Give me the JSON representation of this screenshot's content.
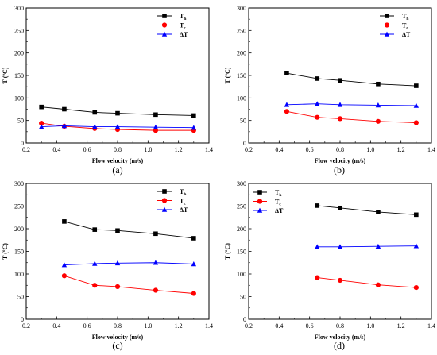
{
  "chart_data": [
    {
      "type": "line",
      "panel_label": "(a)",
      "xlabel": "Flow velocity (m/s)",
      "ylabel": "T (ºC)",
      "xlim": [
        0.2,
        1.4
      ],
      "ylim": [
        0,
        300
      ],
      "xticks": [
        "0.2",
        "0.4",
        "0.6",
        "0.8",
        "1.0",
        "1.2",
        "1.4"
      ],
      "yticks": [
        "0",
        "50",
        "100",
        "150",
        "200",
        "250",
        "300"
      ],
      "legend_position": "top-right",
      "series": [
        {
          "name": "T",
          "sub": "h",
          "color": "#000000",
          "marker": "square",
          "x": [
            0.3,
            0.45,
            0.65,
            0.8,
            1.05,
            1.3
          ],
          "y": [
            80,
            75,
            68,
            66,
            63,
            61
          ]
        },
        {
          "name": "T",
          "sub": "c",
          "color": "#ff0000",
          "marker": "circle",
          "x": [
            0.3,
            0.45,
            0.65,
            0.8,
            1.05,
            1.3
          ],
          "y": [
            44,
            37,
            32,
            30,
            28,
            28
          ]
        },
        {
          "name": "ΔT",
          "sub": "",
          "color": "#0000ff",
          "marker": "triangle",
          "x": [
            0.3,
            0.45,
            0.65,
            0.8,
            1.05,
            1.3
          ],
          "y": [
            36,
            38,
            36,
            36,
            35,
            34
          ]
        }
      ]
    },
    {
      "type": "line",
      "panel_label": "(b)",
      "xlabel": "Flow velocity (m/s)",
      "ylabel": "T (ºC)",
      "xlim": [
        0.2,
        1.4
      ],
      "ylim": [
        0,
        300
      ],
      "xticks": [
        "0.2",
        "0.4",
        "0.6",
        "0.8",
        "1.0",
        "1.2",
        "1.4"
      ],
      "yticks": [
        "0",
        "50",
        "100",
        "150",
        "200",
        "250",
        "300"
      ],
      "legend_position": "top-right",
      "series": [
        {
          "name": "T",
          "sub": "h",
          "color": "#000000",
          "marker": "square",
          "x": [
            0.45,
            0.65,
            0.8,
            1.05,
            1.3
          ],
          "y": [
            155,
            143,
            139,
            131,
            127
          ]
        },
        {
          "name": "T",
          "sub": "c",
          "color": "#ff0000",
          "marker": "circle",
          "x": [
            0.45,
            0.65,
            0.8,
            1.05,
            1.3
          ],
          "y": [
            70,
            57,
            54,
            48,
            45
          ]
        },
        {
          "name": "ΔT",
          "sub": "",
          "color": "#0000ff",
          "marker": "triangle",
          "x": [
            0.45,
            0.65,
            0.8,
            1.05,
            1.3
          ],
          "y": [
            85,
            87,
            85,
            84,
            83
          ]
        }
      ]
    },
    {
      "type": "line",
      "panel_label": "(c)",
      "xlabel": "Flow velocity (m/s)",
      "ylabel": "T (ºC)",
      "xlim": [
        0.2,
        1.4
      ],
      "ylim": [
        0,
        300
      ],
      "xticks": [
        "0.2",
        "0.4",
        "0.6",
        "0.8",
        "1.0",
        "1.2",
        "1.4"
      ],
      "yticks": [
        "0",
        "50",
        "100",
        "150",
        "200",
        "250",
        "300"
      ],
      "legend_position": "top-right",
      "series": [
        {
          "name": "T",
          "sub": "h",
          "color": "#000000",
          "marker": "square",
          "x": [
            0.45,
            0.65,
            0.8,
            1.05,
            1.3
          ],
          "y": [
            216,
            198,
            196,
            189,
            179
          ]
        },
        {
          "name": "T",
          "sub": "c",
          "color": "#ff0000",
          "marker": "circle",
          "x": [
            0.45,
            0.65,
            0.8,
            1.05,
            1.3
          ],
          "y": [
            96,
            75,
            72,
            64,
            57
          ]
        },
        {
          "name": "ΔT",
          "sub": "",
          "color": "#0000ff",
          "marker": "triangle",
          "x": [
            0.45,
            0.65,
            0.8,
            1.05,
            1.3
          ],
          "y": [
            120,
            123,
            124,
            125,
            122
          ]
        }
      ]
    },
    {
      "type": "line",
      "panel_label": "(d)",
      "xlabel": "Flow velocity (m/s)",
      "ylabel": "T (ºC)",
      "xlim": [
        0.2,
        1.4
      ],
      "ylim": [
        0,
        300
      ],
      "xticks": [
        "0.2",
        "0.4",
        "0.6",
        "0.8",
        "1.0",
        "1.2",
        "1.4"
      ],
      "yticks": [
        "0",
        "50",
        "100",
        "150",
        "200",
        "250",
        "300"
      ],
      "legend_position": "top-left",
      "series": [
        {
          "name": "T",
          "sub": "h",
          "color": "#000000",
          "marker": "square",
          "x": [
            0.65,
            0.8,
            1.05,
            1.3
          ],
          "y": [
            251,
            246,
            237,
            231
          ]
        },
        {
          "name": "T",
          "sub": "c",
          "color": "#ff0000",
          "marker": "circle",
          "x": [
            0.65,
            0.8,
            1.05,
            1.3
          ],
          "y": [
            92,
            86,
            76,
            70
          ]
        },
        {
          "name": "ΔT",
          "sub": "",
          "color": "#0000ff",
          "marker": "triangle",
          "x": [
            0.65,
            0.8,
            1.05,
            1.3
          ],
          "y": [
            160,
            160,
            161,
            162
          ]
        }
      ]
    }
  ]
}
